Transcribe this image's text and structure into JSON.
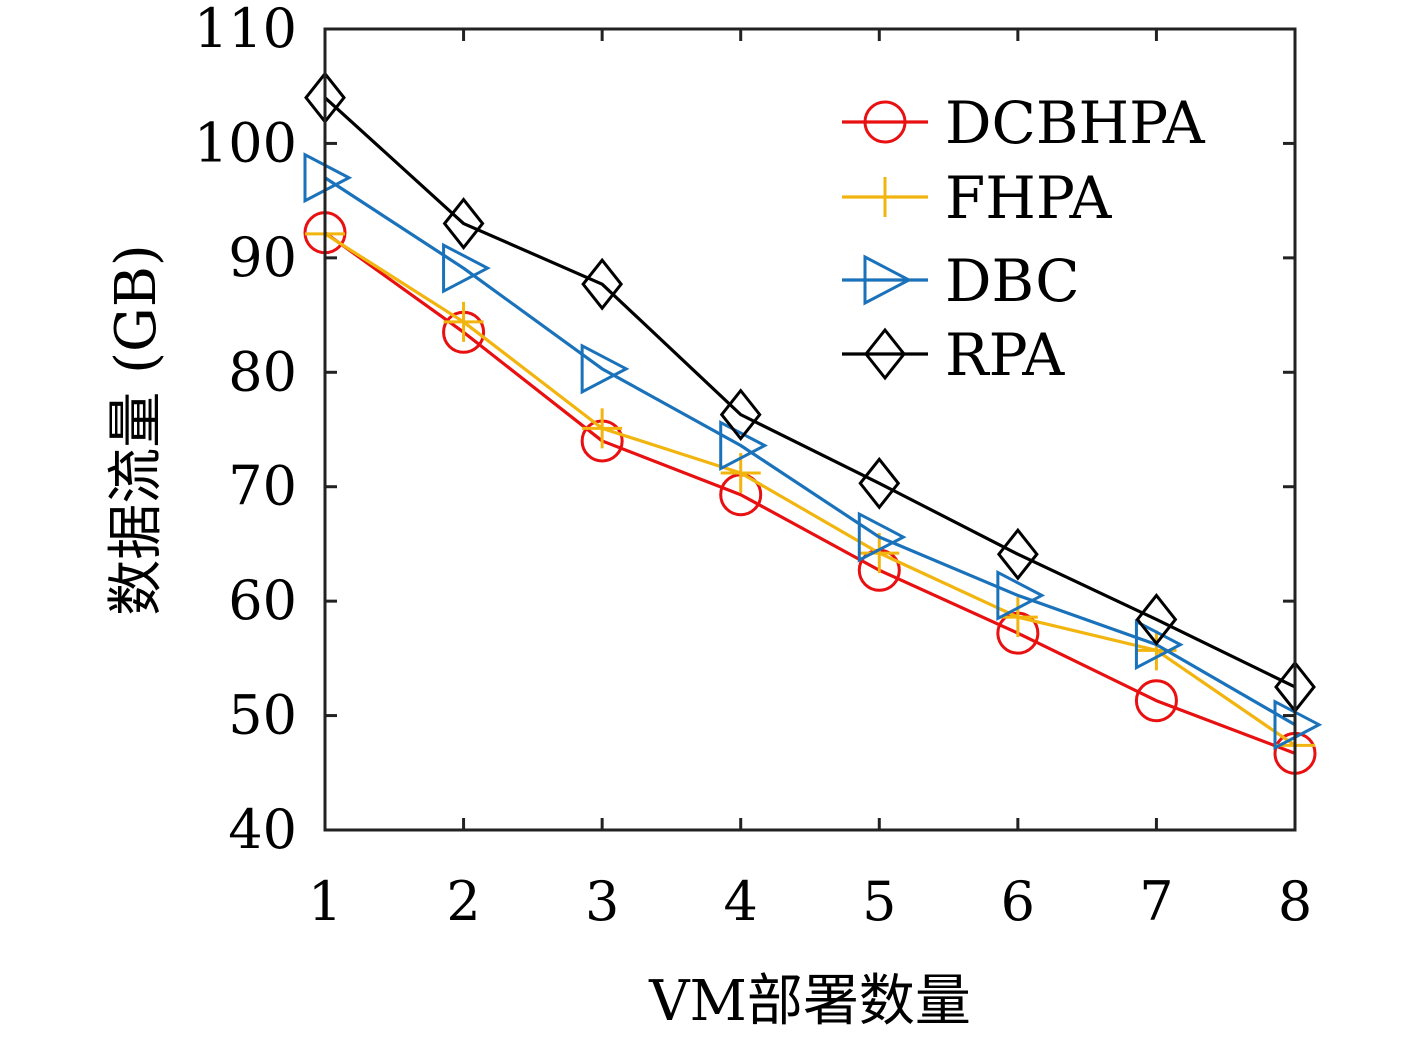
{
  "chart_data": {
    "type": "line",
    "title": "",
    "xlabel": "VM部署数量",
    "ylabel": "数据流量 (GB)",
    "x": [
      1,
      2,
      3,
      4,
      5,
      6,
      7,
      8
    ],
    "x_ticks": [
      "1",
      "2",
      "3",
      "4",
      "5",
      "6",
      "7",
      "8"
    ],
    "y_ticks": [
      "40",
      "50",
      "60",
      "70",
      "80",
      "90",
      "100",
      "110"
    ],
    "xlim": [
      1,
      8
    ],
    "ylim": [
      40,
      110
    ],
    "grid": false,
    "legend_position": "top-right",
    "series": [
      {
        "name": "DCBHPA",
        "marker": "circle",
        "color": "#e81010",
        "values": [
          92.2,
          83.5,
          74.0,
          69.3,
          62.7,
          57.2,
          51.3,
          46.7
        ]
      },
      {
        "name": "FHPA",
        "marker": "plus",
        "color": "#f2b50f",
        "values": [
          92.1,
          84.4,
          75.1,
          71.2,
          64.2,
          58.6,
          55.7,
          47.4
        ]
      },
      {
        "name": "DBC",
        "marker": "triangle-right",
        "color": "#1a72bb",
        "values": [
          97.0,
          89.1,
          80.3,
          73.6,
          65.6,
          60.5,
          56.2,
          49.2
        ]
      },
      {
        "name": "RPA",
        "marker": "diamond",
        "color": "#000000",
        "values": [
          104.0,
          93.0,
          87.7,
          76.3,
          70.3,
          64.1,
          58.4,
          52.5
        ]
      }
    ]
  }
}
